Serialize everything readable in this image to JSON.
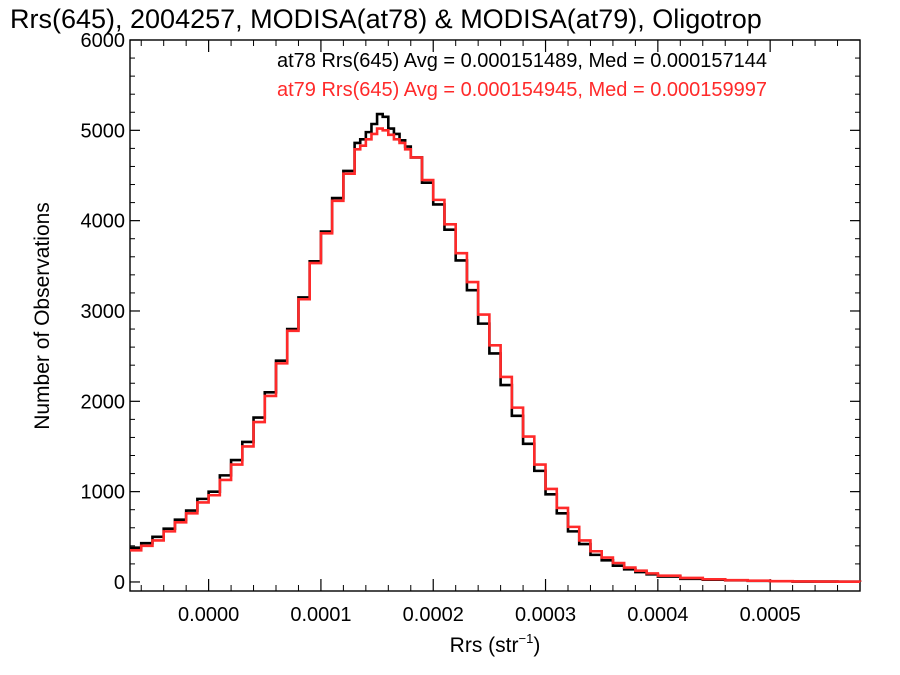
{
  "chart_data": {
    "type": "line",
    "subtype": "step-histogram",
    "title": "Rrs(645), 2004257, MODISA(at78) & MODISA(at79), Oligotrop",
    "xlabel": "Rrs (str",
    "xlabel_sup": "−1",
    "xlabel_close": ")",
    "ylabel": "Number of Observations",
    "xlim": [
      -7e-05,
      0.00058
    ],
    "ylim": [
      -100,
      6000
    ],
    "xticks": [
      0.0,
      0.0001,
      0.0002,
      0.0003,
      0.0004,
      0.0005
    ],
    "xtick_labels": [
      "0.0000",
      "0.0001",
      "0.0002",
      "0.0003",
      "0.0004",
      "0.0005"
    ],
    "yticks": [
      0,
      1000,
      2000,
      3000,
      4000,
      5000,
      6000
    ],
    "ytick_labels": [
      "0",
      "1000",
      "2000",
      "3000",
      "4000",
      "5000",
      "6000"
    ],
    "grid": false,
    "legend_position": "top-right",
    "series": [
      {
        "name": "at78",
        "legend": "at78 Rrs(645) Avg = 0.000151489, Med = 0.000157144",
        "color": "#000000",
        "x": [
          -7e-05,
          -6e-05,
          -5e-05,
          -4e-05,
          -3e-05,
          -2e-05,
          -1e-05,
          0.0,
          1e-05,
          2e-05,
          3e-05,
          4e-05,
          5e-05,
          6e-05,
          7e-05,
          8e-05,
          9e-05,
          0.0001,
          0.00011,
          0.00012,
          0.00013,
          0.000135,
          0.00014,
          0.000145,
          0.00015,
          0.000155,
          0.00016,
          0.000165,
          0.00017,
          0.000175,
          0.00018,
          0.00019,
          0.0002,
          0.00021,
          0.00022,
          0.00023,
          0.00024,
          0.00025,
          0.00026,
          0.00027,
          0.00028,
          0.00029,
          0.0003,
          0.00031,
          0.00032,
          0.00033,
          0.00034,
          0.00035,
          0.00036,
          0.00037,
          0.00038,
          0.00039,
          0.0004,
          0.00042,
          0.00044,
          0.00046,
          0.00048,
          0.0005,
          0.00052,
          0.00054,
          0.00056,
          0.00058
        ],
        "values": [
          380,
          430,
          500,
          590,
          690,
          790,
          920,
          1000,
          1180,
          1350,
          1550,
          1820,
          2100,
          2450,
          2800,
          3150,
          3550,
          3880,
          4250,
          4550,
          4860,
          4900,
          4980,
          5070,
          5180,
          5150,
          5020,
          4960,
          4890,
          4820,
          4700,
          4420,
          4180,
          3900,
          3560,
          3230,
          2860,
          2530,
          2180,
          1840,
          1530,
          1230,
          970,
          760,
          560,
          420,
          300,
          240,
          180,
          140,
          110,
          85,
          60,
          35,
          25,
          18,
          12,
          8,
          5,
          4,
          3,
          2
        ]
      },
      {
        "name": "at79",
        "legend": "at79 Rrs(645) Avg = 0.000154945, Med = 0.000159997",
        "color": "#ff2a2a",
        "x": [
          -7e-05,
          -6e-05,
          -5e-05,
          -4e-05,
          -3e-05,
          -2e-05,
          -1e-05,
          0.0,
          1e-05,
          2e-05,
          3e-05,
          4e-05,
          5e-05,
          6e-05,
          7e-05,
          8e-05,
          9e-05,
          0.0001,
          0.00011,
          0.00012,
          0.00013,
          0.000135,
          0.00014,
          0.000145,
          0.00015,
          0.000155,
          0.00016,
          0.000165,
          0.00017,
          0.000175,
          0.00018,
          0.00019,
          0.0002,
          0.00021,
          0.00022,
          0.00023,
          0.00024,
          0.00025,
          0.00026,
          0.00027,
          0.00028,
          0.00029,
          0.0003,
          0.00031,
          0.00032,
          0.00033,
          0.00034,
          0.00035,
          0.00036,
          0.00037,
          0.00038,
          0.00039,
          0.0004,
          0.00042,
          0.00044,
          0.00046,
          0.00048,
          0.0005,
          0.00052,
          0.00054,
          0.00056,
          0.00058
        ],
        "values": [
          350,
          400,
          460,
          560,
          660,
          760,
          880,
          960,
          1130,
          1300,
          1500,
          1770,
          2060,
          2420,
          2780,
          3130,
          3530,
          3860,
          4220,
          4520,
          4790,
          4830,
          4900,
          4960,
          5020,
          5000,
          4950,
          4900,
          4860,
          4790,
          4700,
          4450,
          4230,
          3960,
          3640,
          3320,
          2960,
          2620,
          2270,
          1930,
          1610,
          1300,
          1030,
          820,
          610,
          460,
          340,
          270,
          210,
          160,
          125,
          95,
          70,
          45,
          30,
          20,
          14,
          9,
          6,
          4,
          3,
          2
        ]
      }
    ]
  }
}
